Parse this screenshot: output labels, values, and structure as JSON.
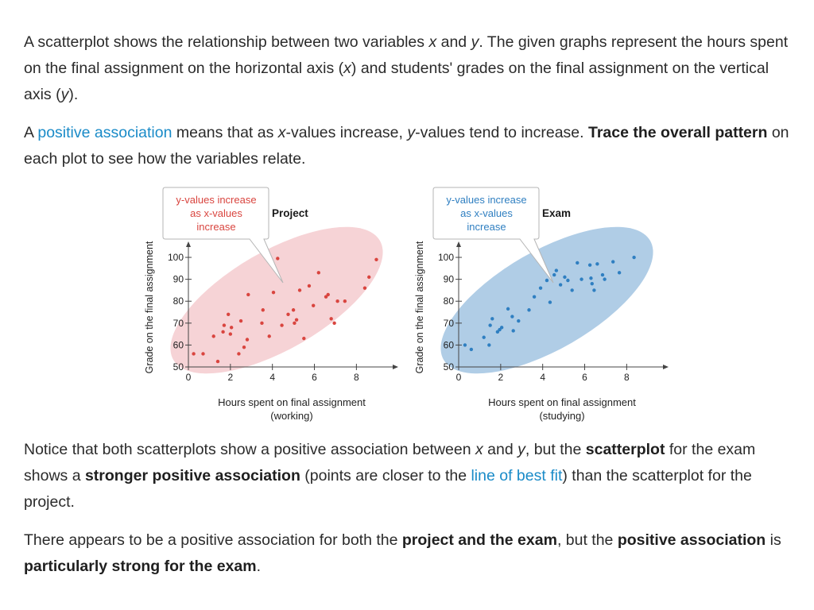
{
  "paragraphs": [
    {
      "id": "p1",
      "segments": [
        {
          "t": "A scatterplot shows the relationship between two variables "
        },
        {
          "t": "x",
          "s": "i"
        },
        {
          "t": " and "
        },
        {
          "t": "y",
          "s": "i"
        },
        {
          "t": ".  The given graphs represent the hours spent on the final assignment on the horizontal axis ("
        },
        {
          "t": "x",
          "s": "i"
        },
        {
          "t": ") and students' grades on the final assignment on the vertical axis ("
        },
        {
          "t": "y",
          "s": "i"
        },
        {
          "t": ")."
        }
      ]
    },
    {
      "id": "p2",
      "segments": [
        {
          "t": "A "
        },
        {
          "t": "positive association",
          "s": "link"
        },
        {
          "t": " means that as "
        },
        {
          "t": "x",
          "s": "i"
        },
        {
          "t": "-values increase, "
        },
        {
          "t": "y",
          "s": "i"
        },
        {
          "t": "-values tend to increase.  "
        },
        {
          "t": "Trace the overall pattern",
          "s": "b"
        },
        {
          "t": " on each plot to see how the variables relate."
        }
      ]
    },
    {
      "id": "p3",
      "segments": [
        {
          "t": "Notice that both scatterplots show a positive association between "
        },
        {
          "t": "x",
          "s": "i"
        },
        {
          "t": " and "
        },
        {
          "t": "y",
          "s": "i"
        },
        {
          "t": ", but the "
        },
        {
          "t": "scatterplot",
          "s": "b"
        },
        {
          "t": " for the exam shows a "
        },
        {
          "t": "stronger positive association",
          "s": "b"
        },
        {
          "t": " (points are closer to the "
        },
        {
          "t": "line of best fit",
          "s": "link"
        },
        {
          "t": ") than the scatterplot for the project."
        }
      ]
    },
    {
      "id": "p4",
      "segments": [
        {
          "t": "There appears to be a positive association for both the "
        },
        {
          "t": "project and the exam",
          "s": "b"
        },
        {
          "t": ", but the "
        },
        {
          "t": "positive association",
          "s": "b"
        },
        {
          "t": " is "
        },
        {
          "t": "particularly strong for the exam",
          "s": "b"
        },
        {
          "t": "."
        }
      ]
    }
  ],
  "chart_data": [
    {
      "type": "scatter",
      "title": "Project",
      "xlabel": "Hours spent on final assignment",
      "xlabel_sub": "(working)",
      "ylabel": "Grade on the final assignment",
      "xlim": [
        0,
        9.5
      ],
      "ylim": [
        50,
        104
      ],
      "xticks": [
        0,
        2,
        4,
        6,
        8
      ],
      "yticks": [
        50,
        60,
        70,
        80,
        90,
        100
      ],
      "callout": [
        "y-values increase",
        "as x-values",
        "increase"
      ],
      "color": "#d9453f",
      "ellipse_color": "#f6d3d6",
      "x": [
        0.25,
        0.7,
        1.4,
        1.2,
        1.65,
        1.7,
        1.9,
        2.0,
        2.05,
        2.4,
        2.5,
        2.65,
        2.8,
        2.85,
        3.5,
        3.55,
        3.85,
        4.05,
        4.25,
        4.45,
        4.75,
        5.0,
        5.05,
        5.15,
        5.3,
        5.5,
        5.75,
        5.95,
        6.2,
        6.55,
        6.65,
        6.8,
        6.95,
        7.1,
        7.45,
        8.4,
        8.6,
        8.95
      ],
      "y": [
        56,
        56,
        52.5,
        64,
        66,
        69,
        74,
        65,
        68,
        56,
        71,
        59,
        62.5,
        83,
        70,
        76,
        64,
        84,
        99.5,
        69,
        74,
        76,
        70,
        71.5,
        85,
        63,
        87,
        78,
        93,
        82,
        83,
        72,
        70,
        80,
        80,
        86,
        91,
        99
      ]
    },
    {
      "type": "scatter",
      "title": "Exam",
      "xlabel": "Hours spent on final assignment",
      "xlabel_sub": "(studying)",
      "ylabel": "Grade on the final assignment",
      "xlim": [
        0,
        9.5
      ],
      "ylim": [
        50,
        104
      ],
      "xticks": [
        0,
        2,
        4,
        6,
        8
      ],
      "yticks": [
        50,
        60,
        70,
        80,
        90,
        100
      ],
      "callout": [
        "y-values increase",
        "as x-values",
        "increase"
      ],
      "color": "#2f7fc1",
      "ellipse_color": "#b0cde6",
      "x": [
        0.3,
        0.6,
        1.2,
        1.45,
        1.5,
        1.6,
        1.85,
        1.95,
        2.05,
        2.35,
        2.55,
        2.6,
        2.85,
        3.35,
        3.6,
        3.9,
        4.2,
        4.35,
        4.55,
        4.65,
        4.85,
        5.05,
        5.2,
        5.4,
        5.65,
        5.85,
        6.25,
        6.3,
        6.35,
        6.45,
        6.6,
        6.85,
        6.95,
        7.35,
        7.65,
        8.35
      ],
      "y": [
        60,
        58,
        63.5,
        60,
        69,
        72,
        66,
        67,
        68,
        76.5,
        73,
        66.5,
        71,
        76,
        82,
        86,
        89.5,
        79.5,
        92,
        94,
        87.5,
        91,
        89.5,
        85,
        97.5,
        90,
        96.5,
        90.5,
        88,
        85,
        97,
        92,
        90,
        98,
        93,
        100
      ]
    }
  ]
}
